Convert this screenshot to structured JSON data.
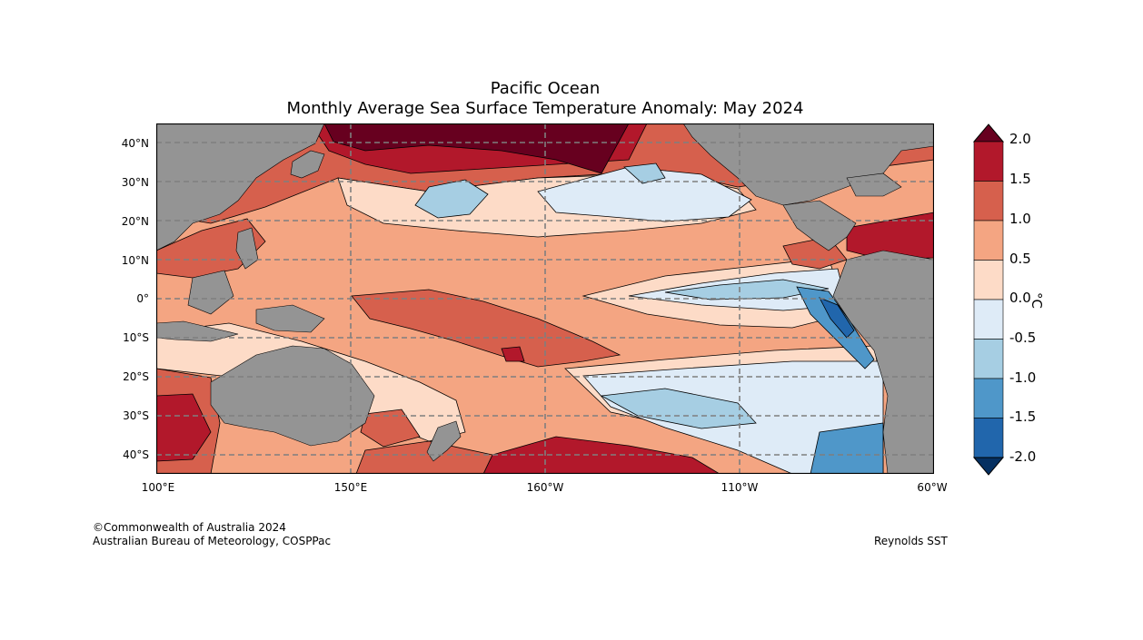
{
  "title": {
    "line1": "Pacific Ocean",
    "line2": "Monthly Average Sea Surface Temperature Anomaly: May 2024"
  },
  "axes": {
    "lat_labels": [
      "40°N",
      "30°N",
      "20°N",
      "10°N",
      "0°",
      "10°S",
      "20°S",
      "30°S",
      "40°S"
    ],
    "lon_labels": [
      "100°E",
      "150°E",
      "160°W",
      "110°W",
      "60°W"
    ]
  },
  "colorbar": {
    "unit": "°C",
    "tick_labels": [
      "2.0",
      "1.5",
      "1.0",
      "0.5",
      "0.0",
      "-0.5",
      "-1.0",
      "-1.5",
      "-2.0"
    ],
    "colors": [
      "#67001f",
      "#b2182b",
      "#d6604d",
      "#f4a582",
      "#fddbc7",
      "#deebf7",
      "#a6cee3",
      "#4f97c9",
      "#2166ac",
      "#053061"
    ]
  },
  "colors": {
    "land": "#949494",
    "grid": "#7f7f7f"
  },
  "credits": {
    "copyright": "©Commonwealth of Australia 2024",
    "agency": "Australian Bureau of Meteorology, COSPPac",
    "source": "Reynolds SST"
  }
}
